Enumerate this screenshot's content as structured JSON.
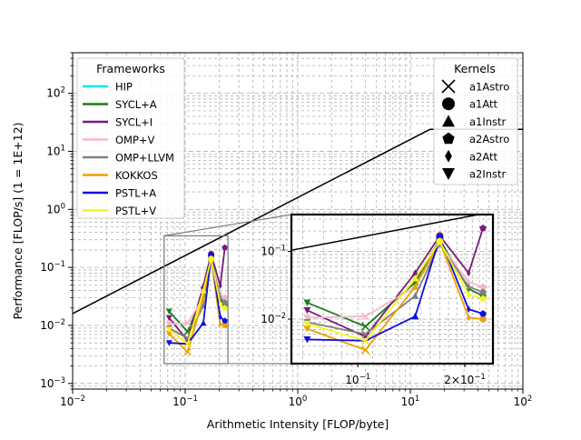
{
  "chart_data": {
    "type": "scatter",
    "xlabel": "Arithmetic Intensity [FLOP/byte]",
    "ylabel": "Performance [FLOP/s] (1 = 1E+12)",
    "xscale": "log",
    "yscale": "log",
    "xlim": [
      0.01,
      100
    ],
    "ylim": [
      0.0008,
      500
    ],
    "grid": true,
    "x_ticks": [
      {
        "value": 0.01,
        "base": "10",
        "exp": "−2"
      },
      {
        "value": 0.1,
        "base": "10",
        "exp": "−1"
      },
      {
        "value": 1,
        "base": "10",
        "exp": "0"
      },
      {
        "value": 10,
        "base": "10",
        "exp": "1"
      },
      {
        "value": 100,
        "base": "10",
        "exp": "2"
      }
    ],
    "y_ticks": [
      {
        "value": 0.001,
        "base": "10",
        "exp": "−3"
      },
      {
        "value": 0.01,
        "base": "10",
        "exp": "−2"
      },
      {
        "value": 0.1,
        "base": "10",
        "exp": "−1"
      },
      {
        "value": 1,
        "base": "10",
        "exp": "0"
      },
      {
        "value": 10,
        "base": "10",
        "exp": "1"
      },
      {
        "value": 100,
        "base": "10",
        "exp": "2"
      }
    ],
    "roofline": {
      "bandwidth_slope": 1.6,
      "peak": 24,
      "color": "#000000"
    },
    "frameworks_legend": {
      "title": "Frameworks",
      "placement": "upper-left",
      "entries": [
        {
          "name": "HIP",
          "color": "#00e5ee"
        },
        {
          "name": "SYCL+A",
          "color": "#1a7f1a"
        },
        {
          "name": "SYCL+I",
          "color": "#7a1a7a"
        },
        {
          "name": "OMP+V",
          "color": "#f4b8c8"
        },
        {
          "name": "OMP+LLVM",
          "color": "#808080"
        },
        {
          "name": "KOKKOS",
          "color": "#f0a000"
        },
        {
          "name": "PSTL+A",
          "color": "#1010e0"
        },
        {
          "name": "PSTL+V",
          "color": "#f5f520"
        }
      ]
    },
    "kernels_legend": {
      "title": "Kernels",
      "placement": "upper-right",
      "entries": [
        {
          "name": "a1Astro",
          "marker": "x"
        },
        {
          "name": "a1Att",
          "marker": "o"
        },
        {
          "name": "a1Instr",
          "marker": "^"
        },
        {
          "name": "a2Astro",
          "marker": "p"
        },
        {
          "name": "a2Att",
          "marker": "d"
        },
        {
          "name": "a2Instr",
          "marker": "v"
        }
      ]
    },
    "kernel_order": [
      "a2Instr",
      "a1Astro",
      "a1Instr",
      "a1Att",
      "a2Att",
      "a2Astro"
    ],
    "kernel_x": {
      "a2Instr": 0.072,
      "a1Astro": 0.105,
      "a1Instr": 0.145,
      "a1Att": 0.17,
      "a2Att": 0.205,
      "a2Astro": 0.225
    },
    "series": [
      {
        "name": "SYCL+A",
        "values": {
          "a2Instr": 0.0175,
          "a1Astro": 0.0078,
          "a1Instr": 0.035,
          "a1Att": 0.15,
          "a2Att": 0.028,
          "a2Astro": 0.022
        }
      },
      {
        "name": "SYCL+I",
        "values": {
          "a2Instr": 0.0135,
          "a1Astro": 0.0055,
          "a1Instr": 0.048,
          "a1Att": 0.17,
          "a2Att": 0.048,
          "a2Astro": 0.22
        }
      },
      {
        "name": "OMP+V",
        "values": {
          "a2Instr": 0.0105,
          "a1Astro": 0.011,
          "a1Instr": 0.03,
          "a1Att": 0.13,
          "a2Att": 0.035,
          "a2Astro": 0.03
        }
      },
      {
        "name": "OMP+LLVM",
        "values": {
          "a2Instr": 0.009,
          "a1Astro": 0.006,
          "a1Instr": 0.022,
          "a1Att": 0.13,
          "a2Att": 0.03,
          "a2Astro": 0.025
        }
      },
      {
        "name": "KOKKOS",
        "values": {
          "a2Instr": 0.0072,
          "a1Astro": 0.0035,
          "a1Instr": 0.03,
          "a1Att": 0.14,
          "a2Att": 0.0105,
          "a2Astro": 0.01
        }
      },
      {
        "name": "PSTL+A",
        "values": {
          "a2Instr": 0.005,
          "a1Astro": 0.0048,
          "a1Instr": 0.011,
          "a1Att": 0.16,
          "a2Att": 0.014,
          "a2Astro": 0.012
        }
      },
      {
        "name": "PSTL+V",
        "values": {
          "a2Instr": 0.0085,
          "a1Astro": 0.0048,
          "a1Instr": 0.04,
          "a1Att": 0.14,
          "a2Att": 0.023,
          "a2Astro": 0.02
        }
      }
    ],
    "inset": {
      "xlim": [
        0.065,
        0.24
      ],
      "ylim": [
        0.0022,
        0.35
      ],
      "x_ticks": [
        {
          "value": 0.1,
          "label_base": "10",
          "label_exp": "−1"
        },
        {
          "value": 0.2,
          "label_base": "2×10",
          "label_exp": "−1"
        }
      ],
      "y_ticks": [
        {
          "value": 0.01,
          "base": "10",
          "exp": "−2"
        },
        {
          "value": 0.1,
          "base": "10",
          "exp": "−1"
        }
      ]
    }
  }
}
